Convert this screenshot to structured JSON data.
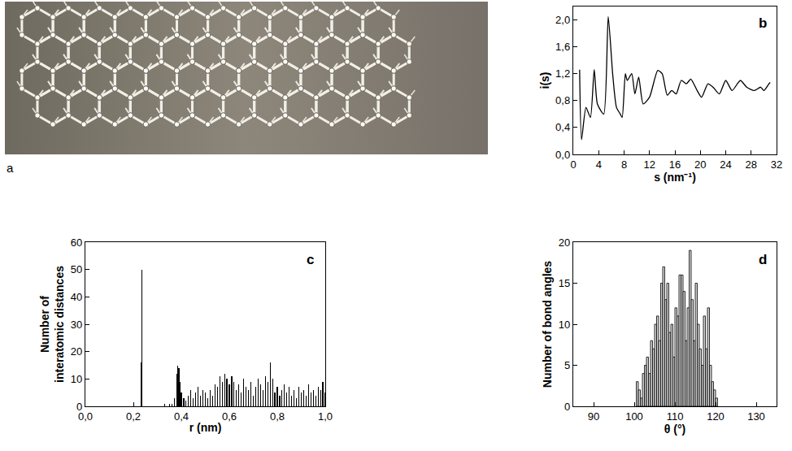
{
  "photo": {
    "label": "a"
  },
  "chart_data": [
    {
      "panel": "b",
      "type": "line",
      "color": "#000000",
      "grid": false,
      "x_label": "s (nm⁻¹)",
      "y_label": "i(s)",
      "x": [
        1.0,
        1.3,
        2.0,
        2.7,
        3.3,
        3.8,
        4.8,
        5.5,
        6.2,
        6.8,
        7.4,
        7.7,
        8.2,
        8.5,
        9.2,
        9.7,
        10.3,
        11.0,
        12.0,
        13.3,
        14.0,
        14.8,
        15.5,
        16.2,
        17.0,
        17.8,
        18.5,
        19.5,
        20.2,
        21.2,
        22.0,
        23.0,
        24.0,
        25.0,
        26.3,
        27.3,
        28.5,
        29.5,
        30.0,
        30.8,
        31.0
      ],
      "values": [
        1.26,
        0.22,
        0.7,
        0.55,
        1.26,
        0.75,
        0.6,
        2.05,
        1.2,
        0.7,
        0.6,
        0.55,
        1.2,
        1.1,
        1.2,
        0.9,
        1.15,
        0.75,
        0.85,
        1.25,
        1.2,
        0.88,
        0.95,
        0.9,
        1.1,
        1.05,
        1.12,
        0.95,
        0.85,
        1.05,
        1.0,
        0.9,
        1.1,
        0.95,
        1.1,
        1.0,
        0.95,
        1.0,
        0.95,
        1.05,
        1.07
      ],
      "xlim": [
        0,
        32
      ],
      "xticks": [
        0,
        4,
        8,
        12,
        16,
        20,
        24,
        28,
        32
      ],
      "ylim": [
        0,
        2.2
      ],
      "yticks": [
        {
          "value": 0,
          "label": "0,0"
        },
        {
          "value": 0.4,
          "label": "0,4"
        },
        {
          "value": 0.8,
          "label": "0,8"
        },
        {
          "value": 1.2,
          "label": "1,2"
        },
        {
          "value": 1.6,
          "label": "1,6"
        },
        {
          "value": 2.0,
          "label": "2,0"
        }
      ]
    },
    {
      "panel": "c",
      "type": "bar",
      "color": "#000000",
      "grid": false,
      "x_label": "r (nm)",
      "y_label": "Number of interatomic distances",
      "x": [
        0.232,
        0.235,
        0.33,
        0.35,
        0.36,
        0.37,
        0.38,
        0.385,
        0.39,
        0.395,
        0.4,
        0.41,
        0.42,
        0.43,
        0.44,
        0.45,
        0.46,
        0.47,
        0.48,
        0.49,
        0.5,
        0.51,
        0.52,
        0.53,
        0.54,
        0.55,
        0.56,
        0.57,
        0.58,
        0.59,
        0.6,
        0.61,
        0.62,
        0.63,
        0.64,
        0.65,
        0.66,
        0.67,
        0.68,
        0.69,
        0.7,
        0.71,
        0.72,
        0.73,
        0.74,
        0.75,
        0.76,
        0.77,
        0.78,
        0.79,
        0.8,
        0.81,
        0.82,
        0.83,
        0.84,
        0.85,
        0.86,
        0.87,
        0.88,
        0.89,
        0.9,
        0.91,
        0.92,
        0.93,
        0.94,
        0.95,
        0.96,
        0.97,
        0.98,
        0.99,
        1.0
      ],
      "values": [
        16,
        50,
        1,
        1,
        1,
        3,
        12,
        15,
        14,
        9,
        5,
        3,
        2,
        4,
        6,
        3,
        5,
        7,
        4,
        6,
        5,
        3,
        6,
        4,
        8,
        7,
        11,
        9,
        12,
        10,
        8,
        11,
        9,
        6,
        8,
        5,
        10,
        7,
        6,
        9,
        4,
        7,
        10,
        8,
        6,
        11,
        9,
        16,
        10,
        5,
        7,
        4,
        6,
        8,
        5,
        7,
        4,
        6,
        3,
        7,
        5,
        6,
        4,
        8,
        5,
        6,
        4,
        7,
        6,
        9,
        5
      ],
      "xlim": [
        0,
        1.0
      ],
      "xticks": [
        {
          "value": 0,
          "label": "0,0"
        },
        {
          "value": 0.2,
          "label": "0,2"
        },
        {
          "value": 0.4,
          "label": "0,4"
        },
        {
          "value": 0.6,
          "label": "0,6"
        },
        {
          "value": 0.8,
          "label": "0,8"
        },
        {
          "value": 1.0,
          "label": "1,0"
        }
      ],
      "ylim": [
        0,
        60
      ],
      "yticks": [
        0,
        10,
        20,
        30,
        40,
        50,
        60
      ]
    },
    {
      "panel": "d",
      "type": "histogram",
      "color": "#d0d0d0",
      "grid": false,
      "x_label": "θ (°)",
      "y_label": "Number of bond angles",
      "bins": [
        100.5,
        101,
        101.5,
        102,
        102.5,
        103,
        103.5,
        104,
        104.5,
        105,
        105.5,
        106,
        106.5,
        107,
        107.5,
        108,
        108.5,
        109,
        109.5,
        110,
        110.5,
        111,
        111.5,
        112,
        112.5,
        113,
        113.5,
        114,
        114.5,
        115,
        115.5,
        116,
        116.5,
        117,
        117.5,
        118,
        118.5,
        119,
        119.5,
        120,
        120.5
      ],
      "values": [
        3,
        2,
        1,
        4,
        5,
        6,
        4,
        8,
        7,
        10,
        11,
        8,
        15,
        17,
        13,
        15,
        9,
        10,
        6,
        12,
        11,
        16,
        16,
        14,
        8,
        12,
        19,
        13,
        8,
        15,
        10,
        7,
        5,
        11,
        7,
        12,
        5,
        3,
        2,
        1
      ],
      "xlim": [
        85,
        135
      ],
      "xticks": [
        90,
        100,
        110,
        120,
        130
      ],
      "ylim": [
        0,
        20
      ],
      "yticks": [
        0,
        5,
        10,
        15,
        20
      ]
    }
  ]
}
